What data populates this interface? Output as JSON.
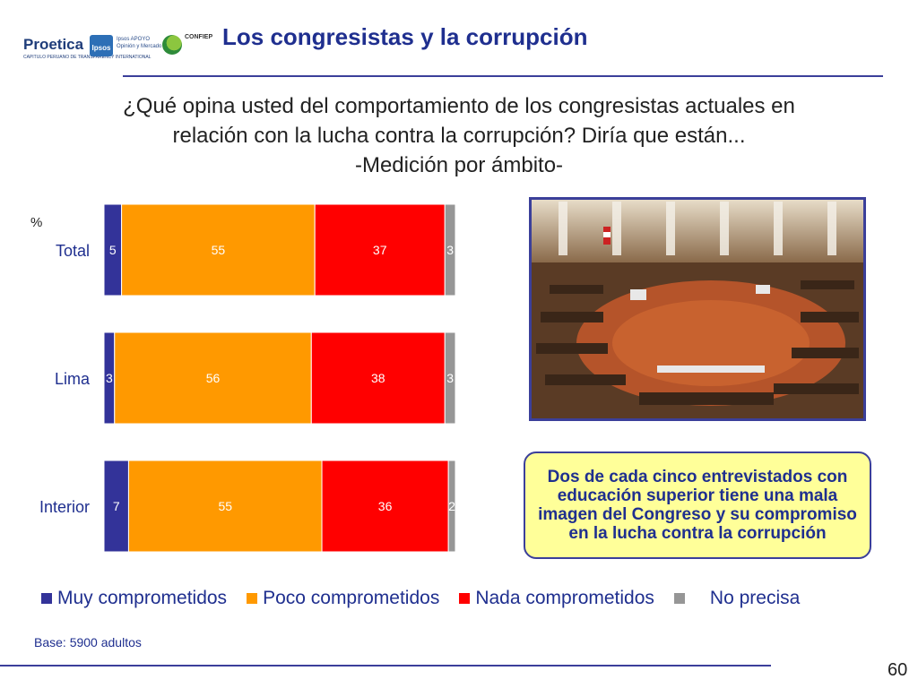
{
  "header": {
    "title": "Los congresistas y la corrupción",
    "logos": {
      "proetica": "Proetica",
      "proetica_sub": "CAPITULO PERUANO DE TRANSPARENCY INTERNATIONAL",
      "ipsos": "Ipsos",
      "ipsos_apoyo": "Ipsos APOYO",
      "ipsos_apoyo_sub": "Opinión y Mercado",
      "confiep": "CONFIEP"
    }
  },
  "question": {
    "line1": "¿Qué opina usted del comportamiento de los congresistas actuales en",
    "line2": "relación con la lucha contra la corrupción? Diría que están...",
    "subtitle": "-Medición por ámbito-"
  },
  "chart_data": {
    "type": "bar",
    "orientation": "horizontal",
    "stacked": true,
    "unit_label": "%",
    "categories": [
      "Total",
      "Lima",
      "Interior"
    ],
    "series": [
      {
        "name": "Muy comprometidos",
        "color": "#333399",
        "values": [
          5,
          3,
          7
        ]
      },
      {
        "name": "Poco comprometidos",
        "color": "#ff9900",
        "values": [
          55,
          56,
          55
        ]
      },
      {
        "name": "Nada comprometidos",
        "color": "#ff0000",
        "values": [
          37,
          38,
          36
        ]
      },
      {
        "name": "No precisa",
        "color": "#969696",
        "values": [
          3,
          3,
          2
        ]
      }
    ],
    "xlim": [
      0,
      100
    ],
    "grid": false,
    "legend_position": "bottom"
  },
  "photo": {
    "icon": "congress-photo"
  },
  "callout": {
    "text": "Dos de cada cinco entrevistados con educación superior tiene una mala imagen del Congreso y su compromiso en la lucha contra la corrupción"
  },
  "footer": {
    "base": "Base: 5900 adultos",
    "page_number": "60"
  }
}
